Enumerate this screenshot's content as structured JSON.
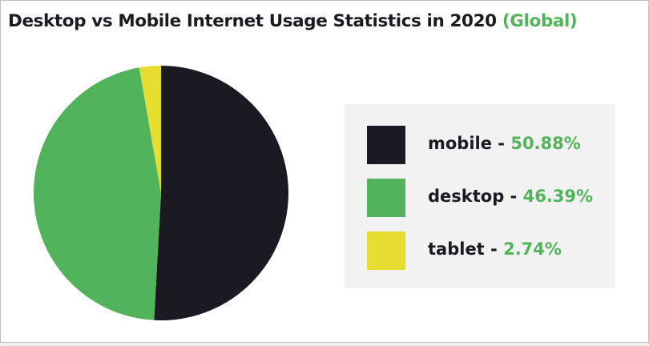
{
  "title": {
    "main": "Desktop vs Mobile Internet Usage Statistics in 2020",
    "accent": "(Global)"
  },
  "colors": {
    "accent": "#52b45a",
    "mobile": "#1b1a23",
    "desktop": "#52b45a",
    "tablet": "#e6dd30"
  },
  "legend": [
    {
      "label": "mobile",
      "separator": " - ",
      "value": "50.88%"
    },
    {
      "label": "desktop",
      "separator": " - ",
      "value": "46.39%"
    },
    {
      "label": "tablet",
      "separator": " - ",
      "value": "2.74%"
    }
  ],
  "chart_data": {
    "type": "pie",
    "title": "Desktop vs Mobile Internet Usage Statistics in 2020 (Global)",
    "categories": [
      "mobile",
      "desktop",
      "tablet"
    ],
    "values": [
      50.88,
      46.39,
      2.74
    ],
    "unit": "%",
    "legend_position": "right",
    "start_angle": "top",
    "direction": "clockwise"
  }
}
